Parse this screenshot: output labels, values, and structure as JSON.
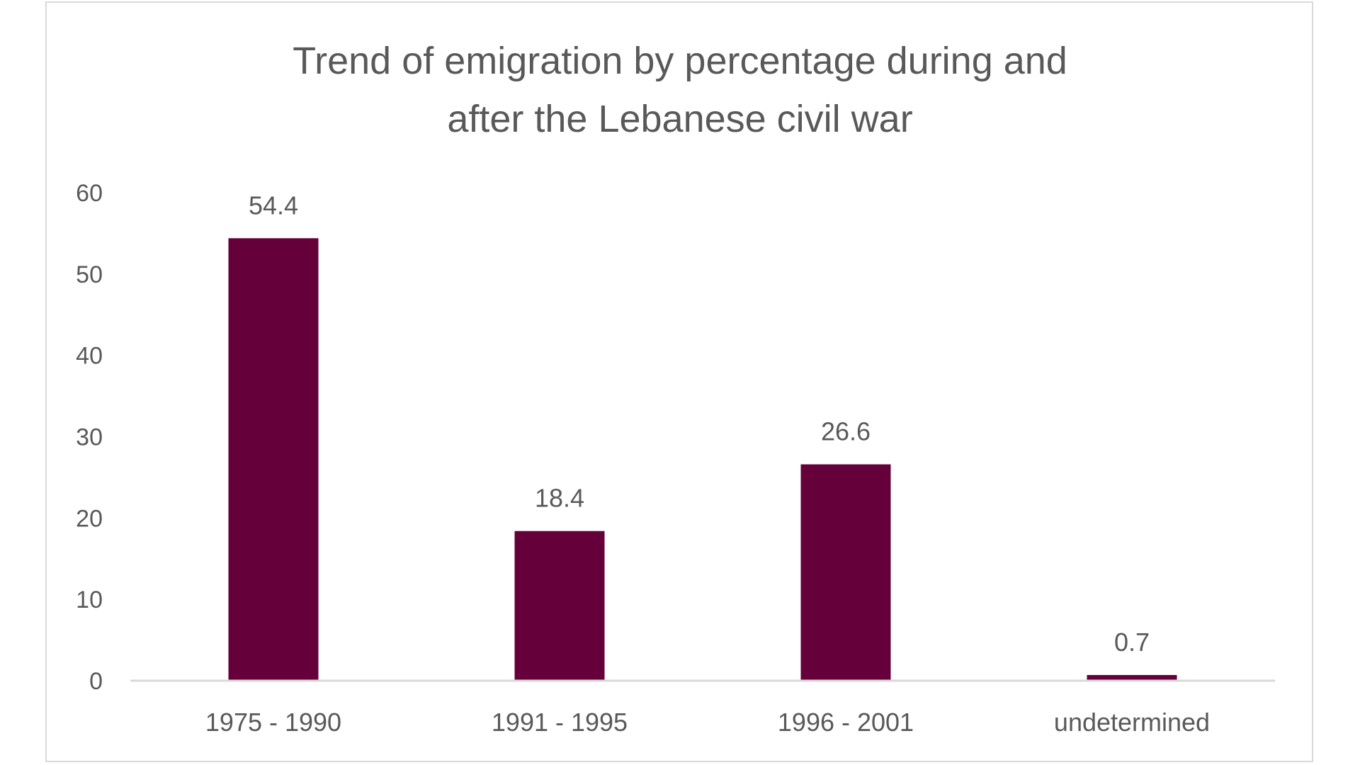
{
  "chart_data": {
    "type": "bar",
    "title": [
      "Trend of emigration by percentage during and",
      "after the Lebanese civil war"
    ],
    "categories": [
      "1975 - 1990",
      "1991 - 1995",
      "1996 - 2001",
      "undetermined"
    ],
    "values": [
      54.4,
      18.4,
      26.6,
      0.7
    ],
    "data_labels": [
      "54.4",
      "18.4",
      "26.6",
      "0.7"
    ],
    "xlabel": "",
    "ylabel": "",
    "ylim": [
      0,
      60
    ],
    "yticks": [
      "0",
      "10",
      "20",
      "30",
      "40",
      "50",
      "60"
    ],
    "grid": false,
    "legend": "none",
    "colors": {
      "bar": "#65003a",
      "text": "#595959",
      "axis": "#d9d9d9"
    }
  }
}
